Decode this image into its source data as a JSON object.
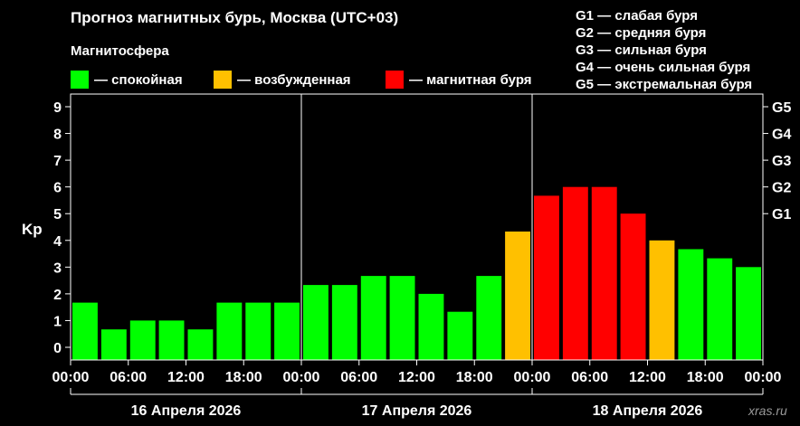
{
  "title": "Прогноз магнитных бурь, Москва (UTC+03)",
  "magnetosphere": {
    "title": "Магнитосфера",
    "legend": [
      {
        "label": "— спокойная",
        "color": "#00ff00"
      },
      {
        "label": "— возбужденная",
        "color": "#ffc000"
      },
      {
        "label": "— магнитная буря",
        "color": "#ff0000"
      }
    ]
  },
  "storm_levels": [
    "G1 — слабая буря",
    "G2 — средняя буря",
    "G3 — сильная буря",
    "G4 — очень сильная буря",
    "G5 — экстремальная буря"
  ],
  "watermark": "xras.ru",
  "colors": {
    "quiet": "#00ff00",
    "disturbed": "#ffc000",
    "storm": "#ff0000",
    "background": "#000000",
    "axis": "#ffffff"
  },
  "chart_data": {
    "type": "bar",
    "ylabel": "Kp",
    "ylim": [
      0,
      9
    ],
    "yticks": [
      0,
      1,
      2,
      3,
      4,
      5,
      6,
      7,
      8,
      9
    ],
    "right_ticks": [
      {
        "value": 5,
        "label": "G1"
      },
      {
        "value": 6,
        "label": "G2"
      },
      {
        "value": 7,
        "label": "G3"
      },
      {
        "value": 8,
        "label": "G4"
      },
      {
        "value": 9,
        "label": "G5"
      }
    ],
    "x_tick_labels": [
      "00:00",
      "06:00",
      "12:00",
      "18:00",
      "00:00",
      "06:00",
      "12:00",
      "18:00",
      "00:00",
      "06:00",
      "12:00",
      "18:00",
      "00:00"
    ],
    "days": [
      "16 Апреля 2026",
      "17 Апреля 2026",
      "18 Апреля 2026"
    ],
    "interval_hours": 3,
    "values": [
      1.67,
      0.67,
      1.0,
      1.0,
      0.67,
      1.67,
      1.67,
      1.67,
      2.33,
      2.33,
      2.67,
      2.67,
      2.0,
      1.33,
      2.67,
      4.33,
      5.67,
      6.0,
      6.0,
      5.0,
      4.0,
      3.67,
      3.33,
      3.0
    ],
    "levels": [
      "quiet",
      "quiet",
      "quiet",
      "quiet",
      "quiet",
      "quiet",
      "quiet",
      "quiet",
      "quiet",
      "quiet",
      "quiet",
      "quiet",
      "quiet",
      "quiet",
      "quiet",
      "disturbed",
      "storm",
      "storm",
      "storm",
      "storm",
      "disturbed",
      "quiet",
      "quiet",
      "quiet"
    ],
    "grid": false,
    "legend_position": "top"
  }
}
